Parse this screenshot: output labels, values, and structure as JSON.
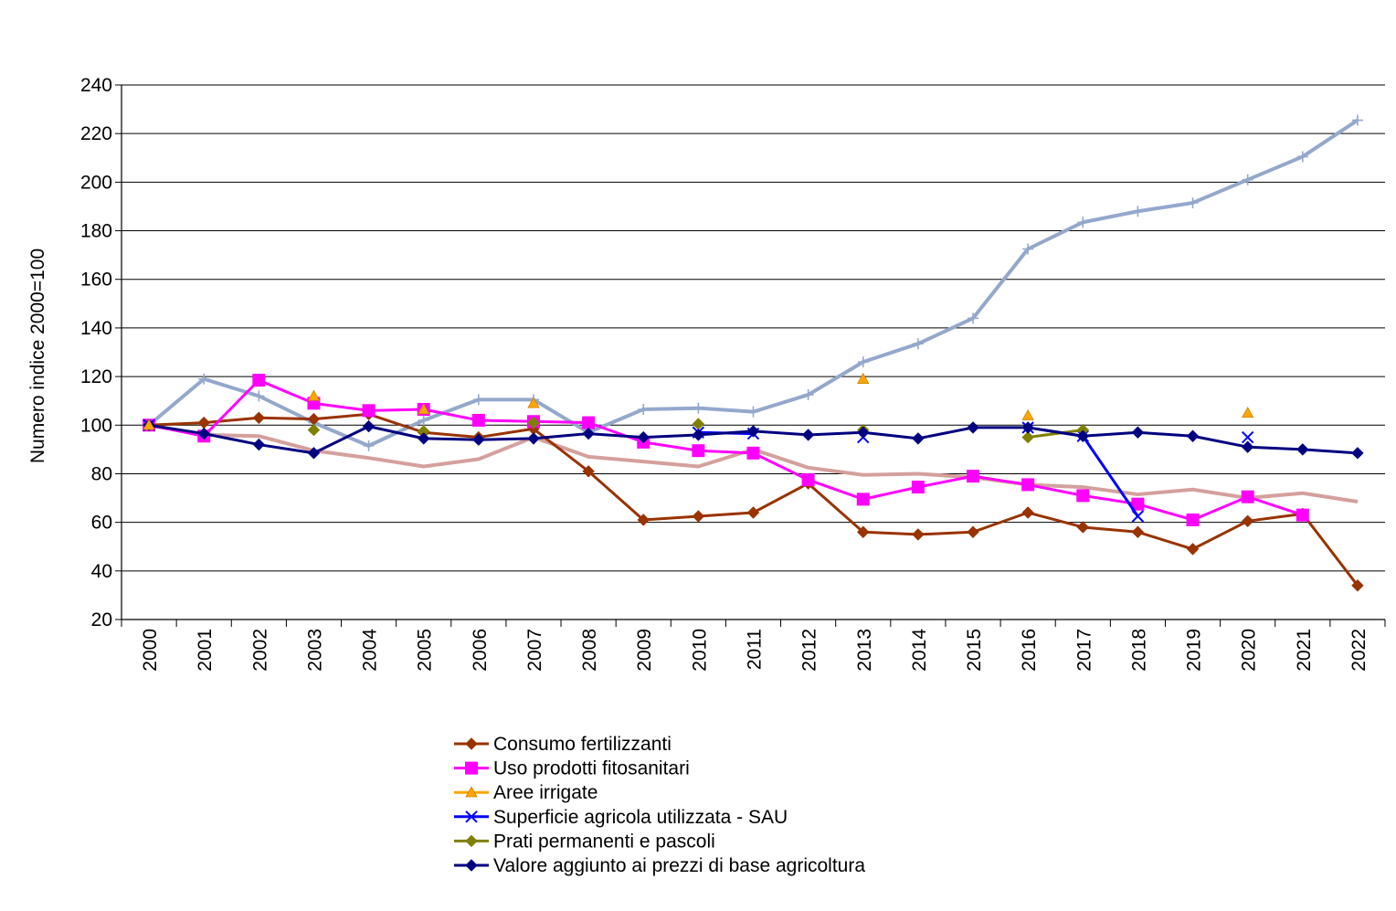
{
  "chart_data": {
    "type": "line",
    "title": "",
    "xlabel": "",
    "ylabel": "Numero indice 2000=100",
    "ylim": [
      20,
      240
    ],
    "yticks": [
      20,
      40,
      60,
      80,
      100,
      120,
      140,
      160,
      180,
      200,
      220,
      240
    ],
    "grid": "horizontal",
    "legend_position": "bottom",
    "categories": [
      "2000",
      "2001",
      "2002",
      "2003",
      "2004",
      "2005",
      "2006",
      "2007",
      "2008",
      "2009",
      "2010",
      "2011",
      "2012",
      "2013",
      "2014",
      "2015",
      "2016",
      "2017",
      "2018",
      "2019",
      "2020",
      "2021",
      "2022"
    ],
    "series": [
      {
        "name": "Consumo fertilizzanti",
        "color": "#993300",
        "marker": "diamond",
        "line": true,
        "in_legend": true,
        "values": [
          100,
          101,
          103,
          102.5,
          104.5,
          97,
          95,
          98.5,
          81,
          61,
          62.5,
          64,
          76,
          56,
          55,
          56,
          64,
          58,
          56,
          49,
          60.5,
          63.5,
          34
        ]
      },
      {
        "name": "Uso prodotti fitosanitari",
        "color": "#FF00FF",
        "marker": "square",
        "line": true,
        "in_legend": true,
        "values": [
          100,
          95.5,
          118.5,
          109,
          106,
          106.5,
          102,
          101.5,
          101,
          93,
          89.5,
          88.5,
          77.5,
          69.5,
          74.5,
          79,
          75.5,
          71,
          67.5,
          61,
          70.5,
          63,
          null
        ]
      },
      {
        "name": "Aree irrigate",
        "color": "#FFA500",
        "marker": "triangle",
        "line": false,
        "in_legend": true,
        "values": [
          100,
          null,
          null,
          112,
          null,
          106.5,
          null,
          109,
          null,
          null,
          null,
          null,
          null,
          119,
          null,
          null,
          104,
          null,
          null,
          null,
          105,
          null,
          null
        ]
      },
      {
        "name": "Superficie agricola utilizzata - SAU",
        "color": "#0000FF",
        "marker": "x",
        "line": true,
        "in_legend": true,
        "values": [
          100,
          null,
          null,
          null,
          null,
          null,
          null,
          null,
          null,
          null,
          97,
          96.5,
          null,
          95,
          null,
          null,
          99,
          95.5,
          62.5,
          null,
          95,
          null,
          null
        ]
      },
      {
        "name": "Prati permanenti e pascoli",
        "color": "#808000",
        "marker": "diamond",
        "line": true,
        "in_legend": true,
        "values": [
          100,
          null,
          null,
          98,
          null,
          97.5,
          null,
          101,
          null,
          null,
          100.5,
          null,
          null,
          98,
          null,
          null,
          95,
          98,
          null,
          null,
          null,
          null,
          null
        ]
      },
      {
        "name": "Valore aggiunto ai prezzi di base agricoltura",
        "color": "#000080",
        "marker": "diamond",
        "line": true,
        "in_legend": true,
        "values": [
          100,
          96.5,
          92,
          88.5,
          99.5,
          94.5,
          94,
          94.5,
          96.5,
          95,
          96,
          97.5,
          96,
          97,
          94.5,
          99,
          99,
          95.5,
          97,
          95.5,
          91,
          90,
          88.5
        ]
      },
      {
        "name": "",
        "color": "#D4A09C",
        "marker": "none",
        "line": true,
        "in_legend": false,
        "values": [
          100,
          96,
          95.5,
          89.5,
          86.5,
          83,
          86,
          95,
          87,
          85,
          83,
          90,
          82.5,
          79.5,
          80,
          78.5,
          75.5,
          74.5,
          71.5,
          73.5,
          70,
          72,
          68.5
        ]
      },
      {
        "name": "",
        "color": "#94A8CC",
        "marker": "plus",
        "line": true,
        "in_legend": false,
        "values": [
          100,
          119,
          112,
          101,
          91.5,
          102,
          110.5,
          110.5,
          97,
          106.5,
          107,
          105.5,
          112.5,
          126,
          133.5,
          144,
          172.5,
          183.5,
          188,
          191.5,
          201,
          210.5,
          225.5
        ]
      }
    ]
  }
}
